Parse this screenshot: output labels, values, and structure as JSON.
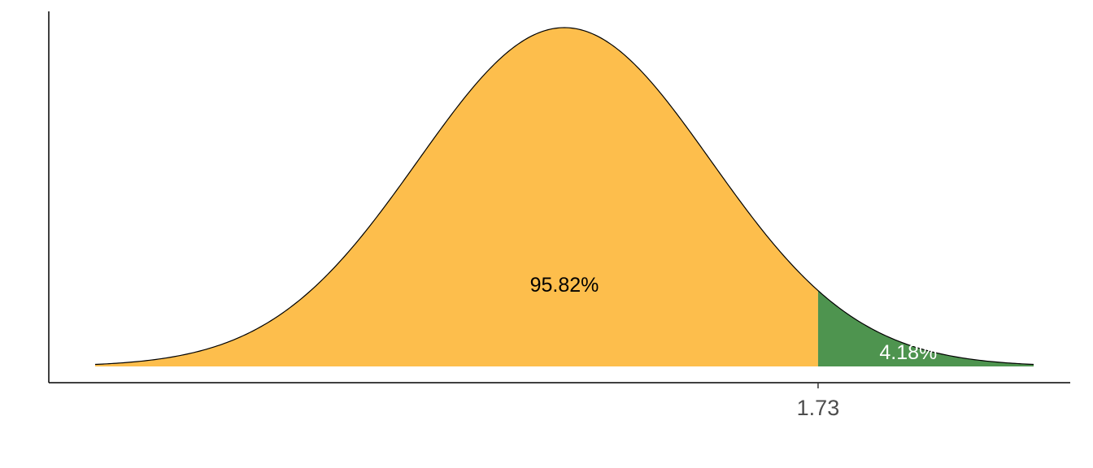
{
  "chart_data": {
    "type": "area",
    "title": "",
    "xlabel": "",
    "ylabel": "",
    "distribution": "standard normal",
    "xlim": [
      -3.2,
      3.2
    ],
    "cutoff": 1.73,
    "regions": [
      {
        "from": -3.2,
        "to": 1.73,
        "percent": "95.82%",
        "fill": "#FDBE4C",
        "label_color": "#000000"
      },
      {
        "from": 1.73,
        "to": 3.2,
        "percent": "4.18%",
        "fill": "#4E944F",
        "label_color": "#ffffff"
      }
    ],
    "x_ticks": [
      {
        "value": 1.73,
        "label": "1.73"
      }
    ],
    "grid": false,
    "legend": "none"
  }
}
